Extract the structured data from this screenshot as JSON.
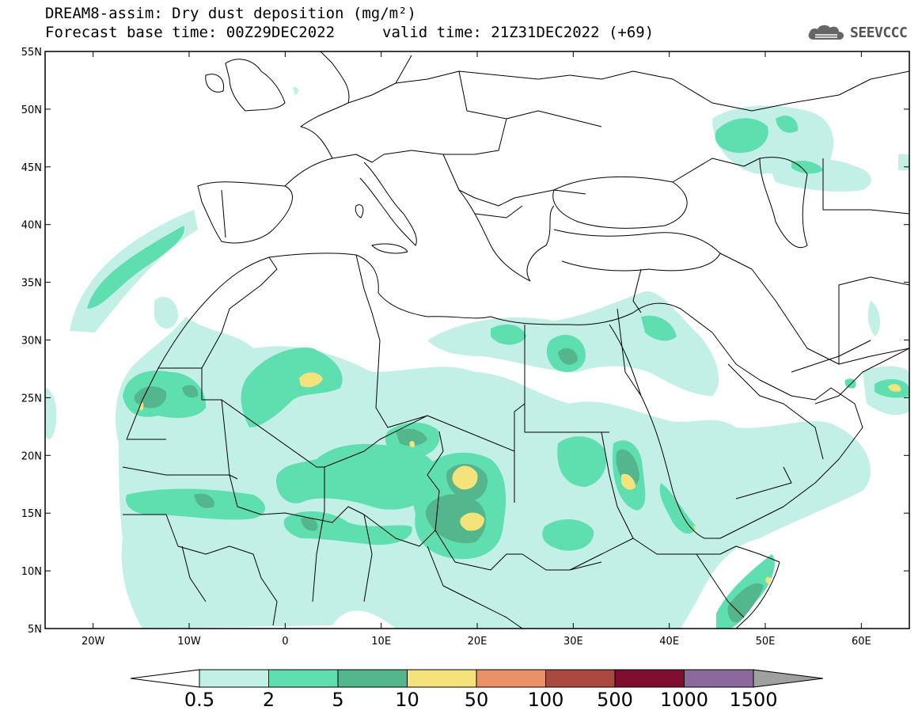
{
  "title": {
    "line1": "DREAM8-assim: Dry dust deposition (mg/m²)",
    "line2": "Forecast base time: 00Z29DEC2022",
    "valid": "valid time: 21Z31DEC2022 (+69)"
  },
  "logo": {
    "text": "SEEVCCC",
    "icon": "cloud-icon"
  },
  "map": {
    "lon_range": [
      -25,
      65
    ],
    "lat_range": [
      5,
      55
    ],
    "lat_ticks": [
      {
        "value": 55,
        "label": "55N"
      },
      {
        "value": 50,
        "label": "50N"
      },
      {
        "value": 45,
        "label": "45N"
      },
      {
        "value": 40,
        "label": "40N"
      },
      {
        "value": 35,
        "label": "35N"
      },
      {
        "value": 30,
        "label": "30N"
      },
      {
        "value": 25,
        "label": "25N"
      },
      {
        "value": 20,
        "label": "20N"
      },
      {
        "value": 15,
        "label": "15N"
      },
      {
        "value": 10,
        "label": "10N"
      },
      {
        "value": 5,
        "label": "5N"
      }
    ],
    "lon_ticks": [
      {
        "value": -20,
        "label": "20W"
      },
      {
        "value": -10,
        "label": "10W"
      },
      {
        "value": 0,
        "label": "0"
      },
      {
        "value": 10,
        "label": "10E"
      },
      {
        "value": 20,
        "label": "20E"
      },
      {
        "value": 30,
        "label": "30E"
      },
      {
        "value": 40,
        "label": "40E"
      },
      {
        "value": 50,
        "label": "50E"
      },
      {
        "value": 60,
        "label": "60E"
      }
    ],
    "colors": {
      "c1": "#c2efe6",
      "c2": "#5fdfb0",
      "c3": "#54b68c",
      "c4": "#f4e37a",
      "c5": "#eb9167",
      "c6": "#a9493f",
      "c7": "#7f0e2e",
      "c8": "#8a6a9c",
      "over": "#a0a0a0"
    }
  },
  "colorbar": {
    "labels": [
      "0.5",
      "2",
      "5",
      "10",
      "50",
      "100",
      "500",
      "1000",
      "1500"
    ],
    "colors": [
      "#c2efe6",
      "#5fdfb0",
      "#54b68c",
      "#f4e37a",
      "#eb9167",
      "#a9493f",
      "#7f0e2e",
      "#8a6a9c"
    ],
    "under_color": "#ffffff",
    "over_color": "#a0a0a0"
  }
}
